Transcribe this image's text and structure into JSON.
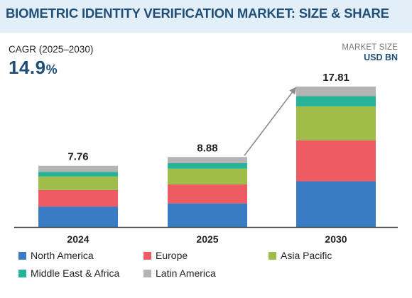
{
  "title": "BIOMETRIC IDENTITY VERIFICATION MARKET: SIZE & SHARE",
  "cagr": {
    "label": "CAGR (2025–2030)",
    "value": "14.9",
    "unit": "%"
  },
  "market_size": {
    "label": "MARKET SIZE",
    "unit": "USD BN"
  },
  "colors": {
    "background": "#e3eff8",
    "title": "#1f4e79",
    "axis": "#444444",
    "arrow": "#8c8c8c"
  },
  "chart_data": {
    "type": "bar",
    "stacked": true,
    "categories": [
      "2024",
      "2025",
      "2030"
    ],
    "totals": [
      7.76,
      8.88,
      17.81
    ],
    "total_labels": [
      "7.76",
      "8.88",
      "17.81"
    ],
    "series": [
      {
        "name": "North America",
        "color": "#3a7cc3",
        "values": [
          2.6,
          3.0,
          5.8
        ]
      },
      {
        "name": "Europe",
        "color": "#ef5b63",
        "values": [
          2.1,
          2.4,
          5.2
        ]
      },
      {
        "name": "Asia Pacific",
        "color": "#9fbd48",
        "values": [
          1.7,
          2.0,
          4.3
        ]
      },
      {
        "name": "Middle East & Africa",
        "color": "#26b398",
        "values": [
          0.6,
          0.7,
          1.3
        ]
      },
      {
        "name": "Latin America",
        "color": "#b4b4b4",
        "values": [
          0.76,
          0.78,
          1.21
        ]
      }
    ],
    "ylim": [
      0,
      17.81
    ],
    "grid": false,
    "legend_position": "bottom",
    "annotation": "growth arrow from 2025 to 2030"
  }
}
